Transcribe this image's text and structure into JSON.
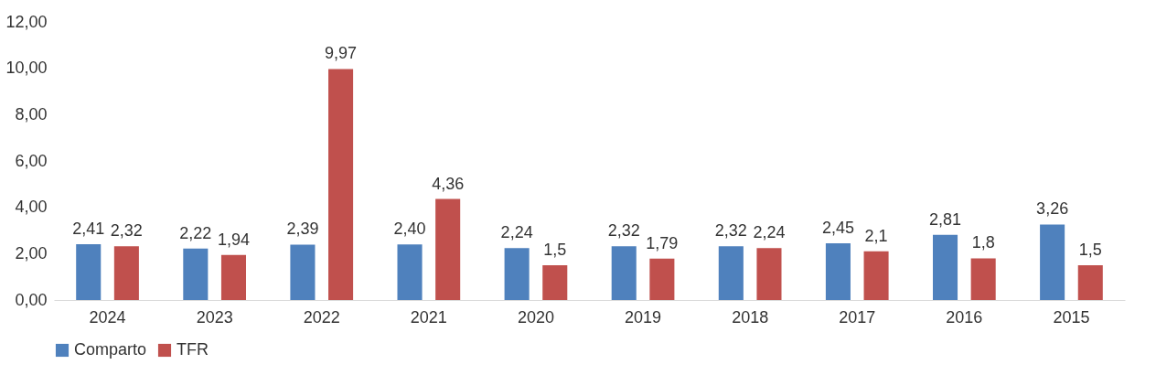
{
  "chart_data": {
    "type": "bar",
    "categories": [
      "2024",
      "2023",
      "2022",
      "2021",
      "2020",
      "2019",
      "2018",
      "2017",
      "2016",
      "2015"
    ],
    "series": [
      {
        "name": "Comparto",
        "color": "#4f81bd",
        "values": [
          2.41,
          2.22,
          2.39,
          2.4,
          2.24,
          2.32,
          2.32,
          2.45,
          2.81,
          3.26
        ],
        "value_labels": [
          "2,41",
          "2,22",
          "2,39",
          "2,40",
          "2,24",
          "2,32",
          "2,32",
          "2,45",
          "2,81",
          "3,26"
        ]
      },
      {
        "name": "TFR",
        "color": "#c0504d",
        "values": [
          2.32,
          1.94,
          9.97,
          4.36,
          1.5,
          1.79,
          2.24,
          2.1,
          1.8,
          1.5
        ],
        "value_labels": [
          "2,32",
          "1,94",
          "9,97",
          "4,36",
          "1,5",
          "1,79",
          "2,24",
          "2,1",
          "1,8",
          "1,5"
        ]
      }
    ],
    "ylim": [
      0,
      12
    ],
    "yticks": [
      {
        "value": 0,
        "label": "0,00"
      },
      {
        "value": 2,
        "label": "2,00"
      },
      {
        "value": 4,
        "label": "4,00"
      },
      {
        "value": 6,
        "label": "6,00"
      },
      {
        "value": 8,
        "label": "8,00"
      },
      {
        "value": 10,
        "label": "10,00"
      },
      {
        "value": 12,
        "label": "12,00"
      }
    ],
    "grid": false,
    "legend": "bottom"
  }
}
